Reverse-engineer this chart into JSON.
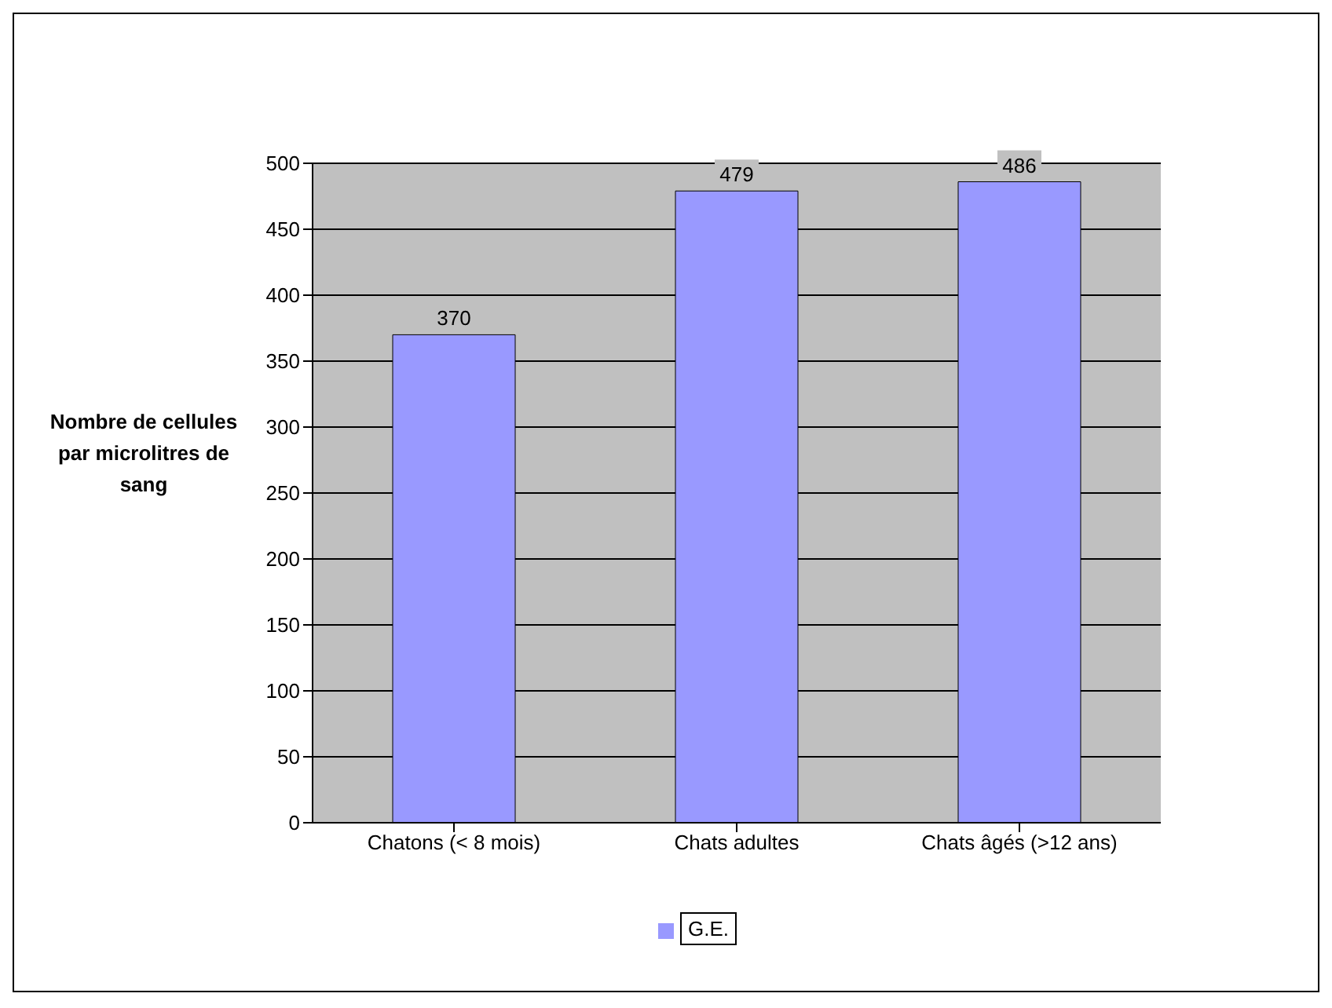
{
  "chart_data": {
    "type": "bar",
    "ylabel": "Nombre de cellules par microlitres de sang",
    "categories": [
      "Chatons (< 8 mois)",
      "Chats adultes",
      "Chats âgés (>12 ans)"
    ],
    "series": [
      {
        "name": "G.E.",
        "color": "#9999ff",
        "values": [
          370,
          479,
          486
        ]
      }
    ],
    "ylim": [
      0,
      500
    ],
    "yticks": [
      0,
      50,
      100,
      150,
      200,
      250,
      300,
      350,
      400,
      450,
      500
    ],
    "grid": "y",
    "legend": "bottom",
    "data_labels": true
  }
}
